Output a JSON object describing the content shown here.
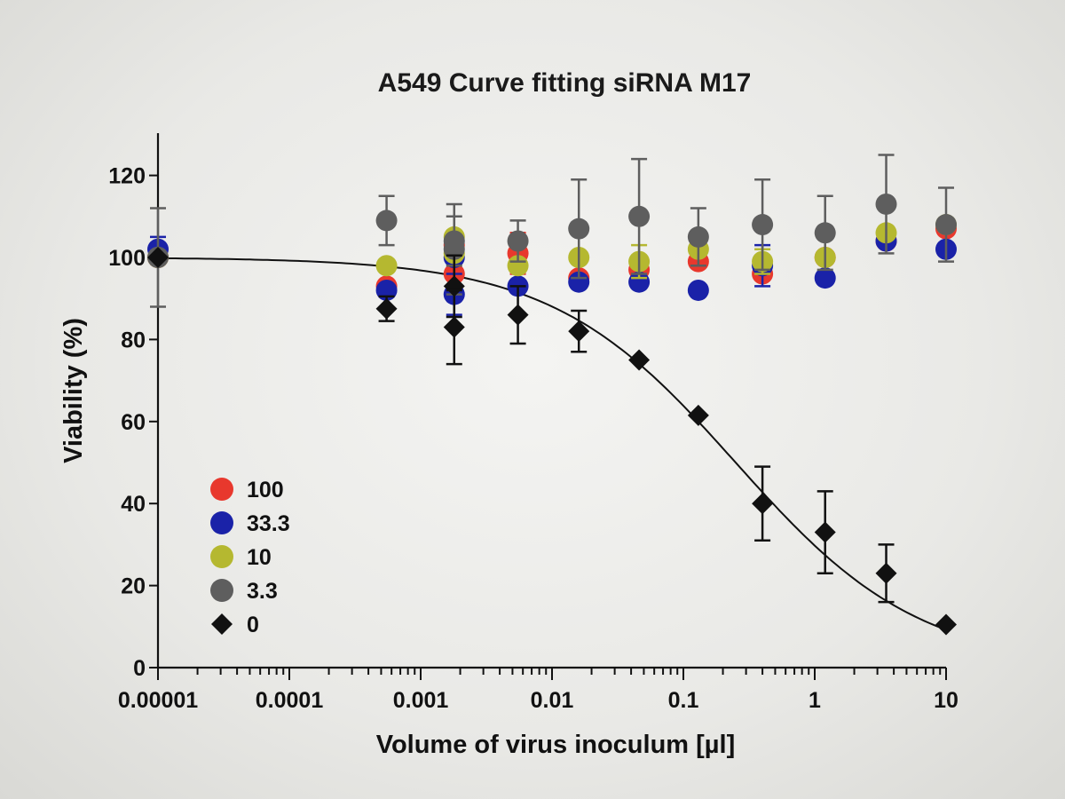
{
  "chart_data": {
    "type": "scatter",
    "title": "A549 Curve fitting siRNA M17",
    "xlabel": "Volume of virus inoculum [µl]",
    "ylabel": "Viability (%)",
    "xscale": "log",
    "xlim": [
      1e-05,
      10
    ],
    "ylim": [
      0,
      130
    ],
    "x_tick_labels": [
      "0.00001",
      "0.0001",
      "0.001",
      "0.01",
      "0.1",
      "1",
      "10"
    ],
    "x_tick_values": [
      1e-05,
      0.0001,
      0.001,
      0.01,
      0.1,
      1,
      10
    ],
    "y_tick_labels": [
      "0",
      "20",
      "40",
      "60",
      "80",
      "100",
      "120"
    ],
    "y_tick_values": [
      0,
      20,
      40,
      60,
      80,
      100,
      120
    ],
    "legend_placement": "bottom-left",
    "x": [
      1e-05,
      0.0018,
      0.00055,
      0.0018,
      0.0055,
      0.016,
      0.046,
      0.13,
      0.4,
      1.2,
      3.5,
      10
    ],
    "series": [
      {
        "name": "100",
        "color": "#e8382d",
        "marker": "circle",
        "values": [
          100,
          103,
          93,
          96,
          101,
          95,
          97,
          99,
          96,
          100,
          104,
          107
        ],
        "errors": [
          0,
          2,
          0,
          0,
          5,
          0,
          0,
          0,
          0,
          0,
          0,
          0
        ]
      },
      {
        "name": "33.3",
        "color": "#1a22a8",
        "marker": "circle",
        "values": [
          102,
          100,
          92,
          91,
          93,
          94,
          94,
          92,
          98,
          95,
          104,
          102
        ],
        "errors": [
          3,
          0,
          0,
          5,
          0,
          0,
          0,
          0,
          5,
          0,
          0,
          0
        ]
      },
      {
        "name": "10",
        "color": "#b5b830",
        "marker": "circle",
        "values": [
          100,
          105,
          98,
          101,
          98,
          100,
          99,
          102,
          99,
          100,
          106,
          108
        ],
        "errors": [
          0,
          0,
          0,
          0,
          0,
          0,
          4,
          0,
          3,
          0,
          0,
          0
        ]
      },
      {
        "name": "3.3",
        "color": "#5e5e5e",
        "marker": "circle",
        "values": [
          100,
          102,
          109,
          104,
          104,
          107,
          110,
          105,
          108,
          106,
          113,
          108
        ],
        "errors": [
          12,
          11,
          6,
          6,
          5,
          12,
          14,
          7,
          11,
          9,
          12,
          9
        ]
      },
      {
        "name": "0",
        "color": "#111111",
        "marker": "diamond",
        "values": [
          100,
          93,
          87.5,
          83,
          86,
          82,
          75,
          61.5,
          40,
          33,
          23,
          10.5
        ],
        "errors": [
          0,
          7.5,
          3,
          9,
          7,
          5,
          0,
          0,
          9,
          10,
          7,
          0
        ],
        "fit_curve": true
      }
    ]
  }
}
